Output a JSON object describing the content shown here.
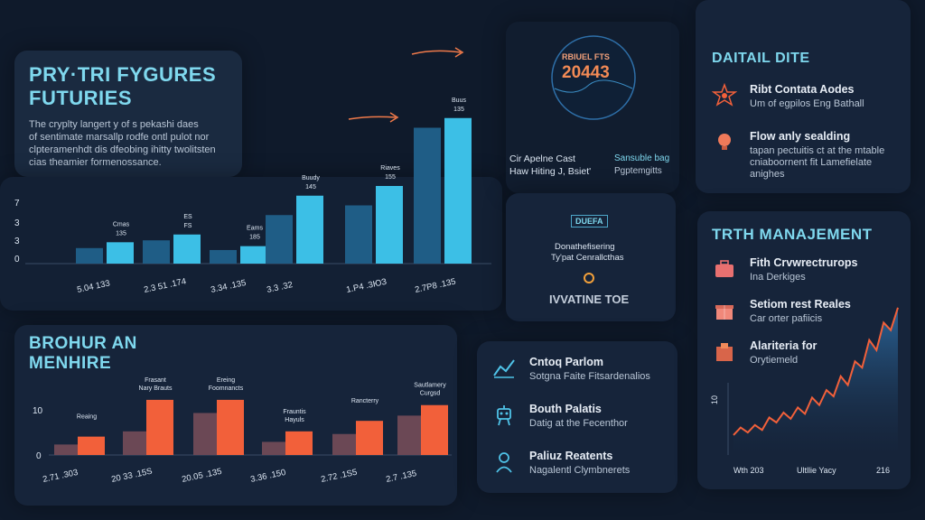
{
  "futures_card": {
    "title_line1": "PRY·TRI FYGURES",
    "title_line2": "FUTURIES",
    "desc_line1": "The cryplty langert y of s pekashi daes",
    "desc_line2": "of sentimate marsallp rodfe ontl pulot nor",
    "desc_line3": "clpteramenhdt dis dfeobing ihitty twolitsten",
    "desc_line4": "cias theamier formenossance."
  },
  "top_chart": {
    "y_ticks": [
      "7",
      "3",
      "3",
      "0"
    ],
    "bar_labels": [
      {
        "l1": "Cmas",
        "l2": "135"
      },
      {
        "l1": "ES",
        "l2": "FS"
      },
      {
        "l1": "Eams",
        "l2": "185"
      },
      {
        "l1": "Buudy",
        "l2": "145"
      },
      {
        "l1": "Riaves",
        "l2": "155"
      },
      {
        "l1": "Buus",
        "l2": "135"
      }
    ],
    "x_labels": [
      "5.04 133",
      "2.3 51 .174",
      "3.34 .135",
      "3.3 .32",
      "1.P4 .3ЮЗ",
      "2.7P8 .135"
    ]
  },
  "center_card": {
    "ring_label": "RBIUEL FTS",
    "ring_value": "20443",
    "left_line1": "Cir Apelne Cast",
    "left_line2": "Haw Hiting J, Bsiet'",
    "right_line1": "Sansuble bag",
    "right_line2": "Pgptemgitts",
    "badge": "DUEFA",
    "mid_line1": "Donathefisering",
    "mid_line2": "Ty'pat Cenrallcthas",
    "brand": "IVVATINE TOE"
  },
  "detail_card": {
    "title": "DAITAIL DITE",
    "items": [
      {
        "title": "Ribt Contata Aodes",
        "sub": "Um of egpilos Eng Bathall",
        "icon": "star-burst-icon"
      },
      {
        "title": "Flow anly sealding",
        "sub": "tapan pectuitis ct at the mtable",
        "sub2": "cniaboornent fit Lamefielate",
        "sub3": "anighes",
        "icon": "lightbulb-icon"
      }
    ]
  },
  "bottom_chart": {
    "title_line1": "BROHUR AN",
    "title_line2": "MENHIRE",
    "y_ticks": [
      "10",
      "0"
    ],
    "bar_labels": [
      {
        "l1": "Reaing",
        "l2": ""
      },
      {
        "l1": "Frasant",
        "l2": "Nary Brauts"
      },
      {
        "l1": "Ereing",
        "l2": "Foomnancts"
      },
      {
        "l1": "Frauntis",
        "l2": "Hayuls"
      },
      {
        "l1": "Rancterry",
        "l2": ""
      },
      {
        "l1": "Sautlamery",
        "l2": "Curgsd"
      }
    ],
    "x_labels": [
      "2.71 .303",
      "20 33 .15S",
      "20.05 .135",
      "3.36 .150",
      "2.72 .1S5",
      "2.7 .135"
    ]
  },
  "features_card": {
    "items": [
      {
        "title": "Cntoq Parlom",
        "sub": "Sotgna Faite Fitsardenalios",
        "icon": "chart-line-icon"
      },
      {
        "title": "Bouth Palatis",
        "sub": "Datig at the Fecenthor",
        "icon": "robot-icon"
      },
      {
        "title": "Paliuz Reatents",
        "sub": "Nagalentl Clymbnerets",
        "icon": "person-badge-icon"
      }
    ]
  },
  "management_card": {
    "title": "TRTH MANAJEMENT",
    "items": [
      {
        "title": "Fith Crvwrectrurops",
        "sub": "Ina Derkiges",
        "icon": "briefcase-icon"
      },
      {
        "title": "Setiom rest Reales",
        "sub": "Car orter pafiicis",
        "icon": "gift-icon"
      },
      {
        "title": "Alariteria for",
        "sub": "Orytiemeld",
        "icon": "box-icon"
      }
    ],
    "y_tick": "10",
    "x_labels": [
      "Wth 203",
      "Ultllie Yacy",
      "216"
    ]
  },
  "chart_data": [
    {
      "type": "bar",
      "categories": [
        "5.04 133",
        "2.3 51 .174",
        "3.34 .135",
        "3.3 .32",
        "1.P4 .3ЮЗ",
        "2.7P8 .135"
      ],
      "series": [
        {
          "values": [
            0.8,
            1.2,
            0.7,
            2.5,
            3.0,
            7.0
          ]
        },
        {
          "values": [
            1.1,
            1.5,
            0.9,
            3.5,
            4.0,
            7.5
          ]
        }
      ],
      "y_ticks": [
        "7",
        "3",
        "3",
        "0"
      ],
      "colors": [
        "#1f5d86",
        "#3cbfe6"
      ]
    },
    {
      "type": "bar",
      "categories": [
        "2.71 .303",
        "20 33 .15S",
        "20.05 .135",
        "3.36 .150",
        "2.72 .1S5",
        "2.7 .135"
      ],
      "series": [
        {
          "values": [
            2.0,
            4.5,
            8.0,
            2.5,
            4.0,
            7.5
          ]
        },
        {
          "values": [
            3.5,
            10.5,
            10.5,
            4.5,
            6.5,
            9.5
          ]
        }
      ],
      "y_ticks": [
        "10",
        "0"
      ],
      "colors": [
        "#6b4855",
        "#f2603a"
      ]
    },
    {
      "type": "area",
      "series": [
        {
          "values": [
            1.6,
            2.2,
            1.8,
            2.4,
            2.0,
            3.0,
            2.6,
            3.4,
            2.9,
            3.8,
            3.3,
            4.6,
            4.0,
            5.2,
            4.7,
            6.3,
            5.6,
            7.5,
            7.0,
            9.2,
            8.4,
            10.6,
            10.0,
            11.8
          ]
        }
      ],
      "y_tick": "10",
      "x_labels": [
        "Wth 203",
        "Ultllie Yacy",
        "216"
      ],
      "colors": [
        "#f2603a"
      ]
    }
  ]
}
